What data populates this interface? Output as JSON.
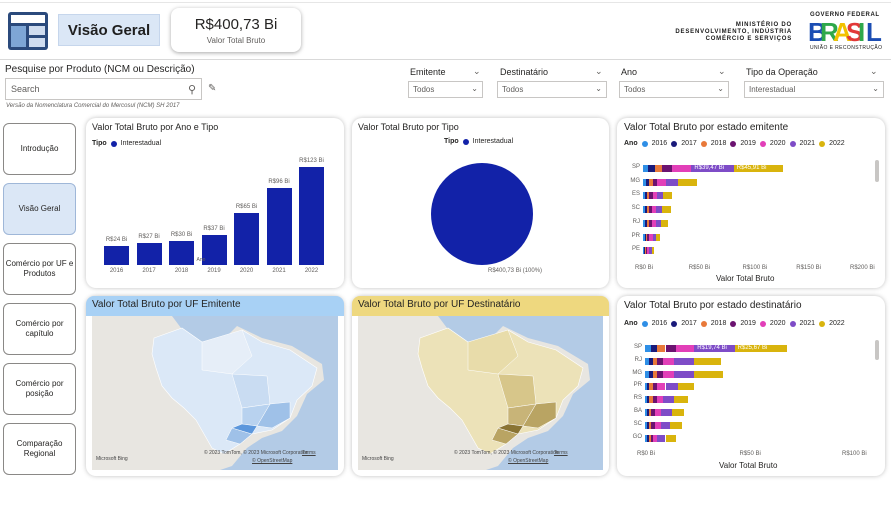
{
  "header": {
    "page_title": "Visão Geral",
    "kpi_value": "R$400,73 Bi",
    "kpi_label": "Valor Total Bruto",
    "ministry_lines": [
      "MINISTÉRIO DO",
      "DESENVOLVIMENTO, INDÚSTRIA",
      "COMÉRCIO E SERVIÇOS"
    ],
    "gov_top": "GOVERNO FEDERAL",
    "gov_word": "BRASIL",
    "gov_bottom": "UNIÃO E RECONSTRUÇÃO"
  },
  "search": {
    "label": "Pesquise por Produto (NCM ou Descrição)",
    "placeholder": "Search",
    "note": "Versão da Nomenclatura Comercial do Mercosul (NCM) SH 2017"
  },
  "filters": [
    {
      "label": "Emitente",
      "value": "Todos"
    },
    {
      "label": "Destinatário",
      "value": "Todos"
    },
    {
      "label": "Ano",
      "value": "Todos"
    },
    {
      "label": "Tipo da Operação",
      "value": "Interestadual"
    }
  ],
  "nav": [
    {
      "label": "Introdução"
    },
    {
      "label": "Visão Geral"
    },
    {
      "label": "Comércio por UF e Produtos"
    },
    {
      "label": "Comércio por capítulo"
    },
    {
      "label": "Comércio por posição"
    },
    {
      "label": "Comparação Regional"
    }
  ],
  "chart_year": {
    "title": "Valor Total Bruto por Ano e Tipo",
    "legend_title": "Tipo",
    "legend_item": "Interestadual",
    "xlabel": "Ano",
    "color": "#1222a8"
  },
  "chart_tipo": {
    "title": "Valor Total Bruto por Tipo",
    "legend_title": "Tipo",
    "legend_item": "Interestadual",
    "slice_label": "R$400,73 Bi (100%)"
  },
  "chart_emit": {
    "title": "Valor Total Bruto por estado emitente",
    "legend_title": "Ano",
    "xlabel": "Valor Total Bruto",
    "ticks": [
      "R$0 Bi",
      "R$50 Bi",
      "R$100 Bi",
      "R$150 Bi",
      "R$200 Bi"
    ],
    "sp_labels": [
      "R$39,47 Bi",
      "R$45,91 Bi"
    ]
  },
  "chart_dest": {
    "title": "Valor Total Bruto por estado destinatário",
    "legend_title": "Ano",
    "xlabel": "Valor Total Bruto",
    "ticks": [
      "R$0 Bi",
      "R$50 Bi",
      "R$100 Bi"
    ],
    "sp_labels": [
      "R$19,74 Bi",
      "R$25,67 Bi"
    ]
  },
  "map_emit": {
    "title": "Valor Total Bruto por UF Emitente",
    "credit": "Microsoft Bing",
    "copyright": "© 2023 TomTom, © 2023 Microsoft Corporation",
    "terms": "Terms",
    "feedback": "© OpenStreetMap"
  },
  "map_dest": {
    "title": "Valor Total Bruto por UF Destinatário",
    "credit": "Microsoft Bing",
    "copyright": "© 2023 TomTom, © 2023 Microsoft Corporation",
    "terms": "Terms",
    "feedback": "© OpenStreetMap"
  },
  "year_colors": {
    "2016": "#2f8fe6",
    "2017": "#1a1a7a",
    "2018": "#e8793a",
    "2019": "#6b1370",
    "2020": "#e23fb8",
    "2021": "#7e4cc7",
    "2022": "#d9b40d"
  },
  "chart_data": [
    {
      "type": "bar",
      "title": "Valor Total Bruto por Ano e Tipo",
      "categories": [
        "2016",
        "2017",
        "2018",
        "2019",
        "2020",
        "2021",
        "2022"
      ],
      "series": [
        {
          "name": "Interestadual",
          "values": [
            24,
            27,
            30,
            37,
            65,
            96,
            123
          ]
        }
      ],
      "data_labels": [
        "R$24 Bi",
        "R$27 Bi",
        "R$30 Bi",
        "R$37 Bi",
        "R$65 Bi",
        "R$96 Bi",
        "R$123 Bi"
      ],
      "xlabel": "Ano",
      "ylabel": ""
    },
    {
      "type": "pie",
      "title": "Valor Total Bruto por Tipo",
      "categories": [
        "Interestadual"
      ],
      "values": [
        400.73
      ]
    },
    {
      "type": "bar",
      "orientation": "horizontal-stacked",
      "title": "Valor Total Bruto por estado emitente",
      "categories": [
        "SP",
        "MG",
        "ES",
        "SC",
        "RJ",
        "PR",
        "PE"
      ],
      "series": [
        {
          "name": "2016",
          "values": [
            5,
            3,
            2,
            2,
            2,
            2,
            1
          ]
        },
        {
          "name": "2017",
          "values": [
            6,
            3,
            2,
            2,
            2,
            1,
            1
          ]
        },
        {
          "name": "2018",
          "values": [
            7,
            3,
            2,
            2,
            2,
            1,
            1
          ]
        },
        {
          "name": "2019",
          "values": [
            9,
            4,
            3,
            2,
            2,
            2,
            1
          ]
        },
        {
          "name": "2020",
          "values": [
            18,
            8,
            4,
            4,
            4,
            3,
            2
          ]
        },
        {
          "name": "2021",
          "values": [
            39.47,
            12,
            6,
            6,
            5,
            3,
            2
          ]
        },
        {
          "name": "2022",
          "values": [
            45.91,
            17,
            8,
            8,
            6,
            4,
            2
          ]
        }
      ],
      "data_labels": [
        "R$39,47 Bi",
        "R$45,91 Bi"
      ],
      "xlabel": "Valor Total Bruto",
      "xlim": [
        0,
        200
      ]
    },
    {
      "type": "bar",
      "orientation": "horizontal-stacked",
      "title": "Valor Total Bruto por estado destinatário",
      "categories": [
        "SP",
        "RJ",
        "MG",
        "PR",
        "RS",
        "BA",
        "SC",
        "GO"
      ],
      "series": [
        {
          "name": "2016",
          "values": [
            3,
            2,
            2,
            1,
            1,
            1,
            1,
            1
          ]
        },
        {
          "name": "2017",
          "values": [
            3,
            2,
            2,
            1,
            1,
            1,
            1,
            1
          ]
        },
        {
          "name": "2018",
          "values": [
            4,
            2,
            2,
            2,
            2,
            1,
            1,
            1
          ]
        },
        {
          "name": "2019",
          "values": [
            5,
            3,
            3,
            2,
            2,
            2,
            2,
            1
          ]
        },
        {
          "name": "2020",
          "values": [
            9,
            5,
            5,
            4,
            3,
            3,
            3,
            2
          ]
        },
        {
          "name": "2021",
          "values": [
            19.74,
            10,
            10,
            6,
            5,
            5,
            4,
            4
          ]
        },
        {
          "name": "2022",
          "values": [
            25.67,
            13,
            14,
            8,
            7,
            6,
            6,
            5
          ]
        }
      ],
      "data_labels": [
        "R$19,74 Bi",
        "R$25,67 Bi"
      ],
      "xlabel": "Valor Total Bruto",
      "xlim": [
        0,
        100
      ]
    }
  ]
}
